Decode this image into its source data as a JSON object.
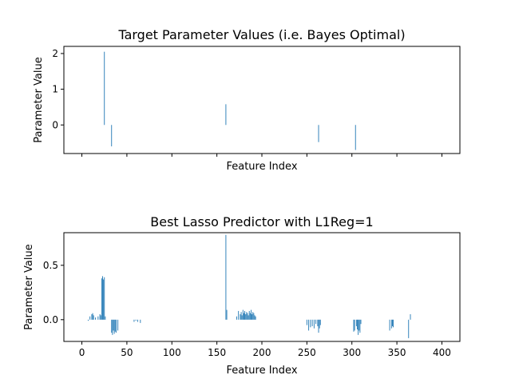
{
  "chart_data": [
    {
      "type": "bar",
      "title": "Target Parameter Values (i.e. Bayes Optimal)",
      "xlabel": "Feature Index",
      "ylabel": "Parameter Value",
      "xlim": [
        -20,
        420
      ],
      "ylim": [
        -0.8,
        2.2
      ],
      "xticks": [
        0,
        50,
        100,
        150,
        200,
        250,
        300,
        350,
        400
      ],
      "show_xtick_labels": false,
      "yticks": [
        {
          "value": 0,
          "label": "0"
        },
        {
          "value": 1,
          "label": "1"
        },
        {
          "value": 2,
          "label": "2"
        }
      ],
      "bar_color": "#1f77b4",
      "x": [
        25,
        33,
        160,
        263,
        304
      ],
      "values": [
        2.05,
        -0.6,
        0.58,
        -0.48,
        -0.7
      ]
    },
    {
      "type": "bar",
      "title": "Best Lasso Predictor with L1Reg=1",
      "xlabel": "Feature Index",
      "ylabel": "Parameter Value",
      "xlim": [
        -20,
        420
      ],
      "ylim": [
        -0.2,
        0.8
      ],
      "xticks": [
        0,
        50,
        100,
        150,
        200,
        250,
        300,
        350,
        400
      ],
      "show_xtick_labels": true,
      "xtick_labels": [
        "0",
        "50",
        "100",
        "150",
        "200",
        "250",
        "300",
        "350",
        "400"
      ],
      "yticks": [
        {
          "value": 0,
          "label": "0.0"
        },
        {
          "value": 0.5,
          "label": "0.5"
        }
      ],
      "bar_color": "#1f77b4",
      "x": [
        7,
        9,
        11,
        12,
        13,
        15,
        18,
        20,
        21,
        22,
        23,
        24,
        25,
        26,
        33,
        34,
        35,
        36,
        37,
        38,
        40,
        58,
        60,
        62,
        65,
        160,
        161,
        172,
        174,
        176,
        177,
        178,
        179,
        180,
        181,
        182,
        183,
        184,
        185,
        186,
        187,
        188,
        189,
        190,
        191,
        192,
        193,
        250,
        252,
        254,
        256,
        258,
        260,
        262,
        263,
        264,
        265,
        302,
        303,
        305,
        306,
        307,
        308,
        309,
        310,
        342,
        344,
        345,
        346,
        363,
        365
      ],
      "values": [
        -0.01,
        0.03,
        0.05,
        0.06,
        0.04,
        0.02,
        0.03,
        0.05,
        0.04,
        0.38,
        0.4,
        0.37,
        0.39,
        0.03,
        -0.12,
        -0.14,
        -0.1,
        -0.13,
        -0.11,
        -0.12,
        -0.1,
        -0.02,
        -0.01,
        -0.02,
        -0.03,
        0.78,
        0.09,
        0.03,
        0.08,
        0.05,
        0.07,
        0.04,
        0.09,
        0.06,
        0.08,
        0.05,
        0.07,
        0.06,
        0.04,
        0.08,
        0.06,
        0.09,
        0.05,
        0.07,
        0.06,
        0.04,
        0.03,
        -0.05,
        -0.1,
        -0.07,
        -0.06,
        -0.08,
        -0.04,
        -0.06,
        -0.12,
        -0.08,
        -0.05,
        -0.11,
        -0.1,
        -0.06,
        -0.09,
        -0.14,
        -0.1,
        -0.12,
        -0.04,
        -0.1,
        -0.08,
        -0.06,
        -0.07,
        -0.17,
        0.05
      ]
    }
  ]
}
